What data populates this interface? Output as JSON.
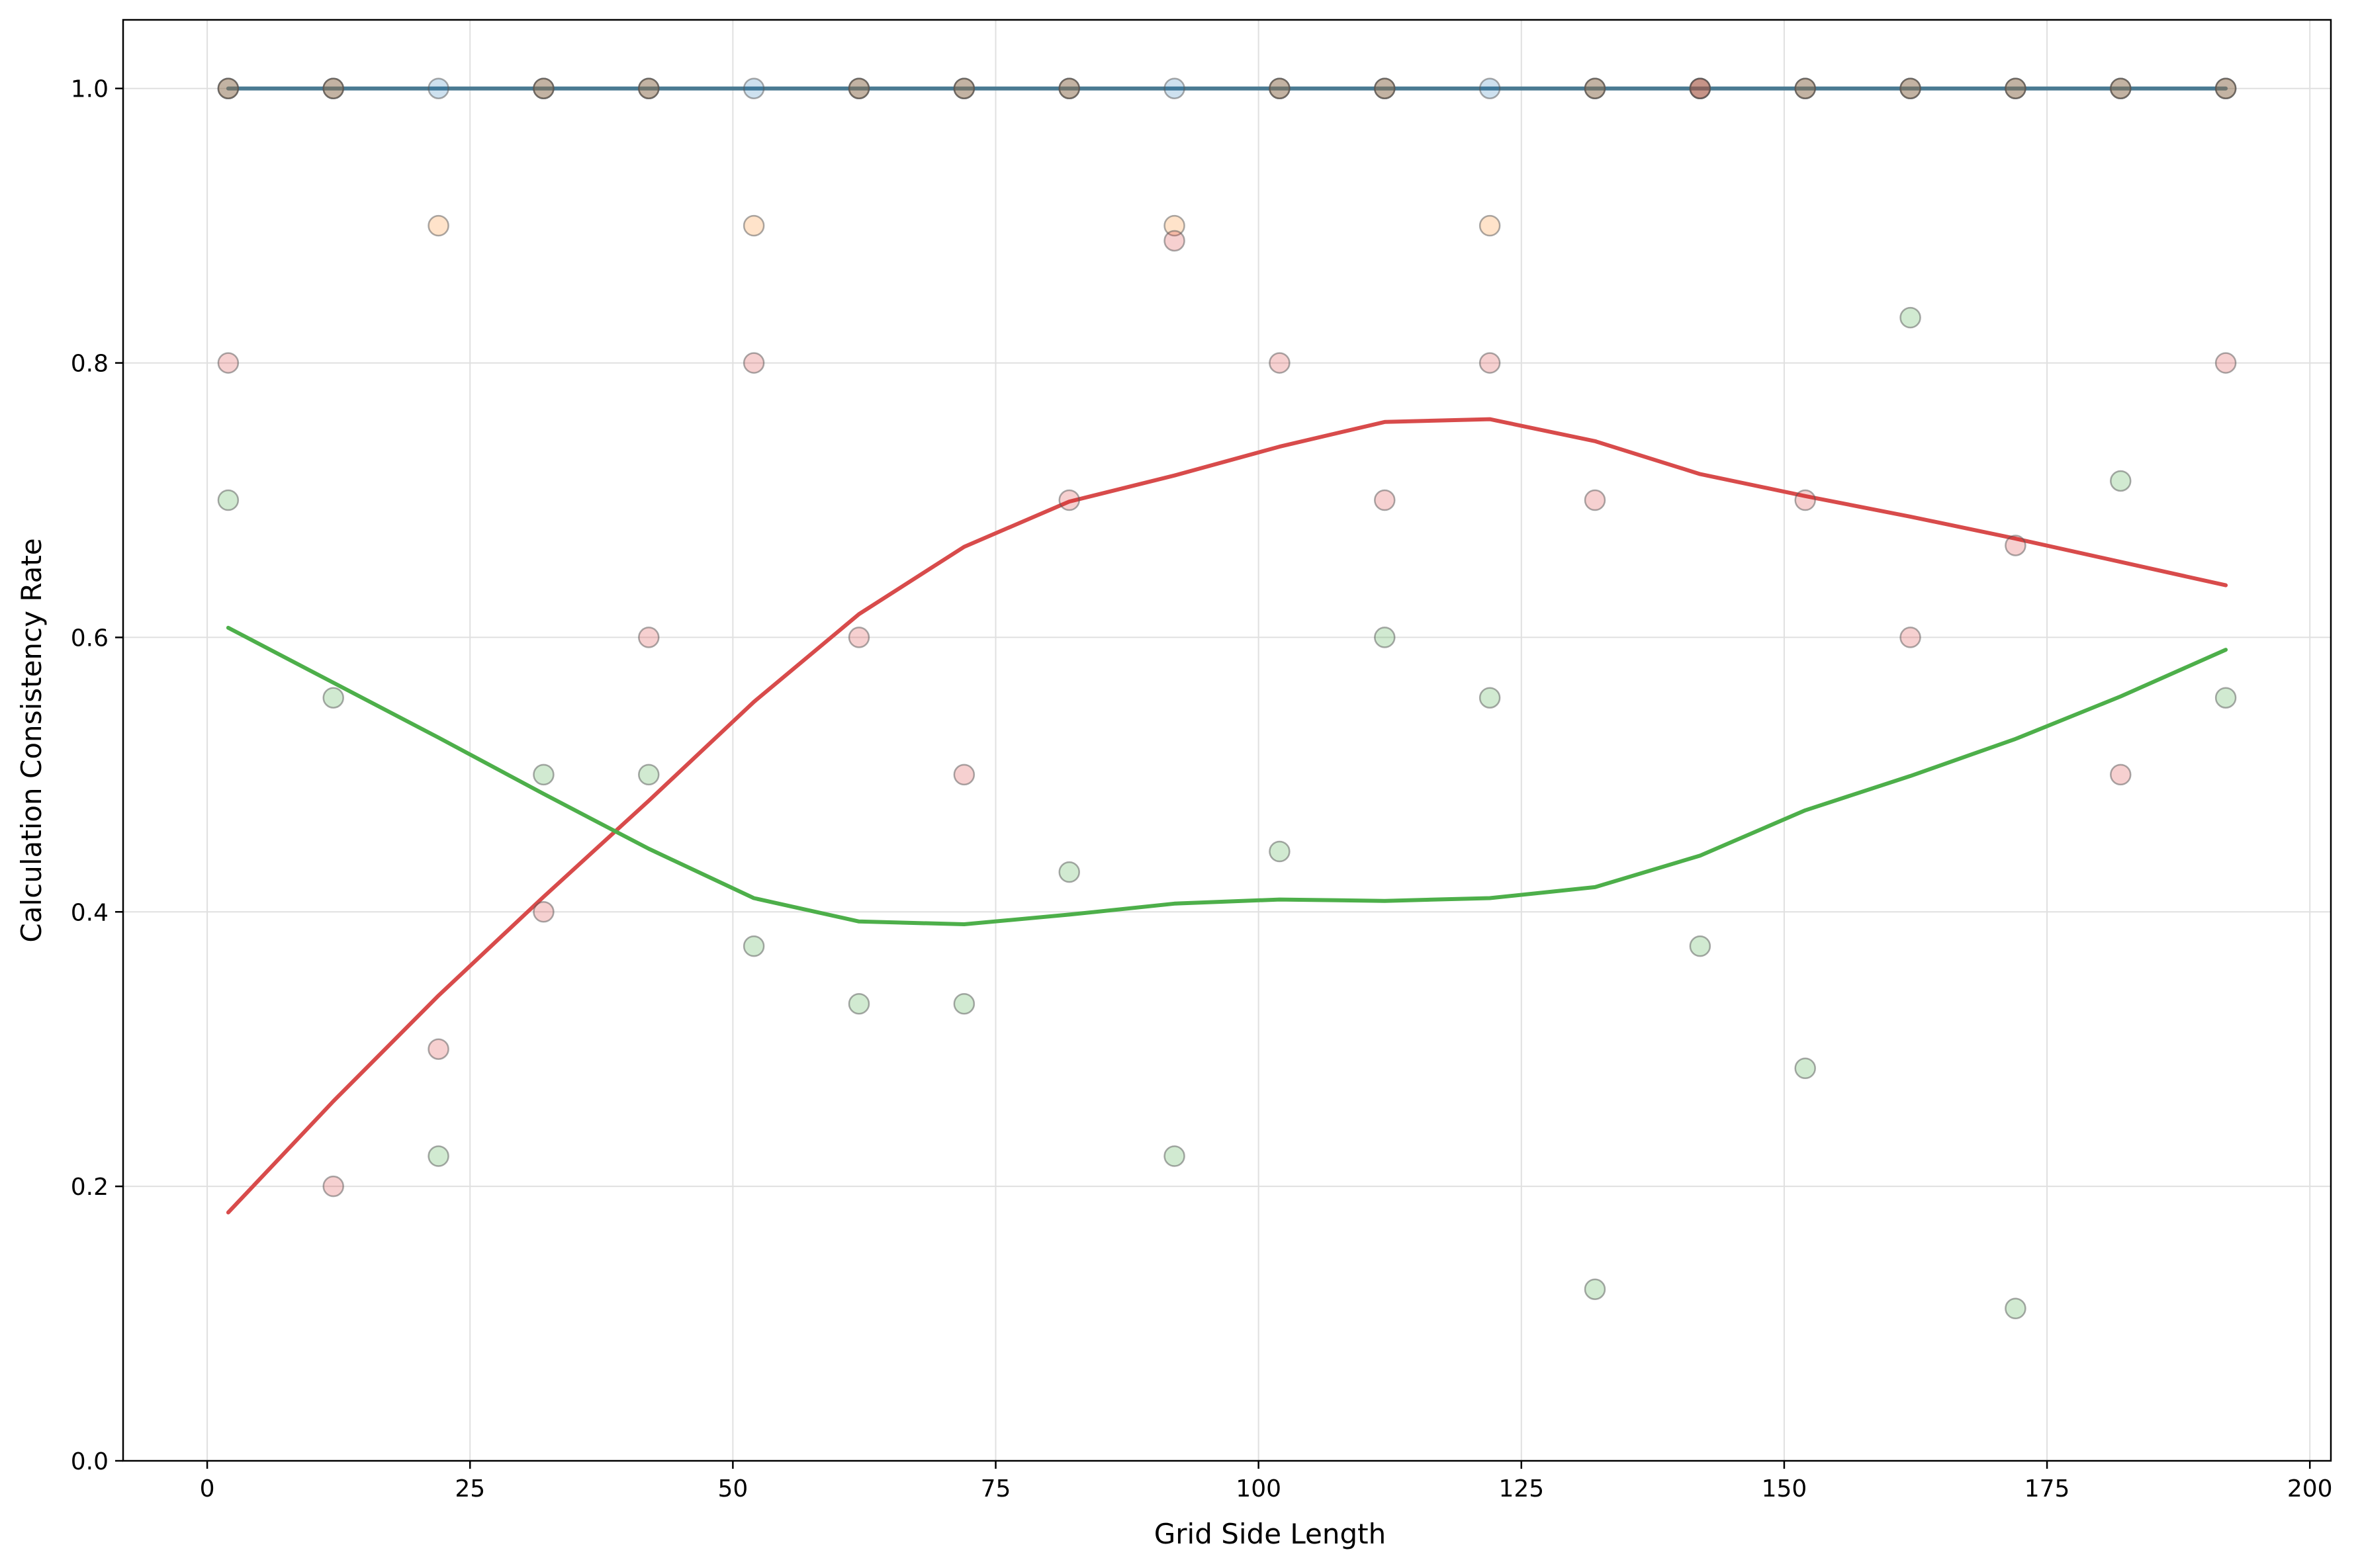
{
  "chart_data": {
    "type": "scatter",
    "xlabel": "Grid Side Length",
    "ylabel": "Calculation Consistency Rate",
    "xlim": [
      -8,
      202
    ],
    "ylim": [
      0,
      1.05
    ],
    "xticks": [
      0,
      25,
      50,
      75,
      100,
      125,
      150,
      175,
      200
    ],
    "yticks": [
      0.0,
      0.2,
      0.4,
      0.6,
      0.8,
      1.0
    ],
    "xtick_labels": [
      "0",
      "25",
      "50",
      "75",
      "100",
      "125",
      "150",
      "175",
      "200"
    ],
    "ytick_labels": [
      "0.0",
      "0.2",
      "0.4",
      "0.6",
      "0.8",
      "1.0"
    ],
    "grid": true,
    "x": [
      2,
      12,
      22,
      32,
      42,
      52,
      62,
      72,
      82,
      92,
      102,
      112,
      122,
      132,
      142,
      152,
      162,
      172,
      182,
      192
    ],
    "series": [
      {
        "color": "#1f77b4",
        "points": [
          1,
          1,
          1,
          1,
          1,
          1,
          1,
          1,
          1,
          1,
          1,
          1,
          1,
          1,
          1,
          1,
          1,
          1,
          1,
          1
        ],
        "trend": [
          1,
          1,
          1,
          1,
          1,
          1,
          1,
          1,
          1,
          1,
          1,
          1,
          1,
          1,
          1,
          1,
          1,
          1,
          1,
          1
        ]
      },
      {
        "color": "#555555",
        "points": [
          1,
          1,
          null,
          1,
          1,
          null,
          1,
          1,
          1,
          null,
          1,
          1,
          null,
          1,
          1,
          1,
          1,
          1,
          1,
          1
        ],
        "trend": [
          1,
          1,
          1,
          1,
          1,
          1,
          1,
          1,
          1,
          1,
          1,
          1,
          1,
          1,
          1,
          1,
          1,
          1,
          1,
          1
        ]
      },
      {
        "color": "#ff7f0e",
        "points": [
          1,
          1,
          0.9,
          1,
          1,
          0.9,
          1,
          1,
          1,
          0.9,
          1,
          1,
          0.9,
          1,
          1,
          1,
          1,
          1,
          1,
          1
        ],
        "trend": null
      },
      {
        "color": "#d62728",
        "points": [
          0.8,
          0.2,
          0.3,
          0.4,
          0.6,
          0.8,
          0.6,
          0.5,
          0.7,
          0.889,
          0.8,
          0.7,
          0.8,
          0.7,
          1,
          0.7,
          0.6,
          0.667,
          0.5,
          0.8
        ],
        "trend": [
          0.181,
          0.262,
          0.339,
          0.411,
          0.481,
          0.553,
          0.617,
          0.666,
          0.699,
          0.718,
          0.739,
          0.757,
          0.759,
          0.743,
          0.719,
          0.703,
          0.688,
          0.672,
          0.655,
          0.638
        ]
      },
      {
        "color": "#2ca02c",
        "points": [
          0.7,
          0.556,
          0.222,
          0.5,
          0.5,
          0.375,
          0.333,
          0.333,
          0.429,
          0.222,
          0.444,
          0.6,
          0.556,
          0.125,
          0.375,
          0.286,
          0.833,
          0.111,
          0.714,
          0.556
        ],
        "trend": [
          0.607,
          0.567,
          0.527,
          0.486,
          0.446,
          0.41,
          0.393,
          0.391,
          0.398,
          0.406,
          0.409,
          0.408,
          0.41,
          0.418,
          0.441,
          0.474,
          0.499,
          0.526,
          0.557,
          0.591
        ]
      }
    ]
  }
}
